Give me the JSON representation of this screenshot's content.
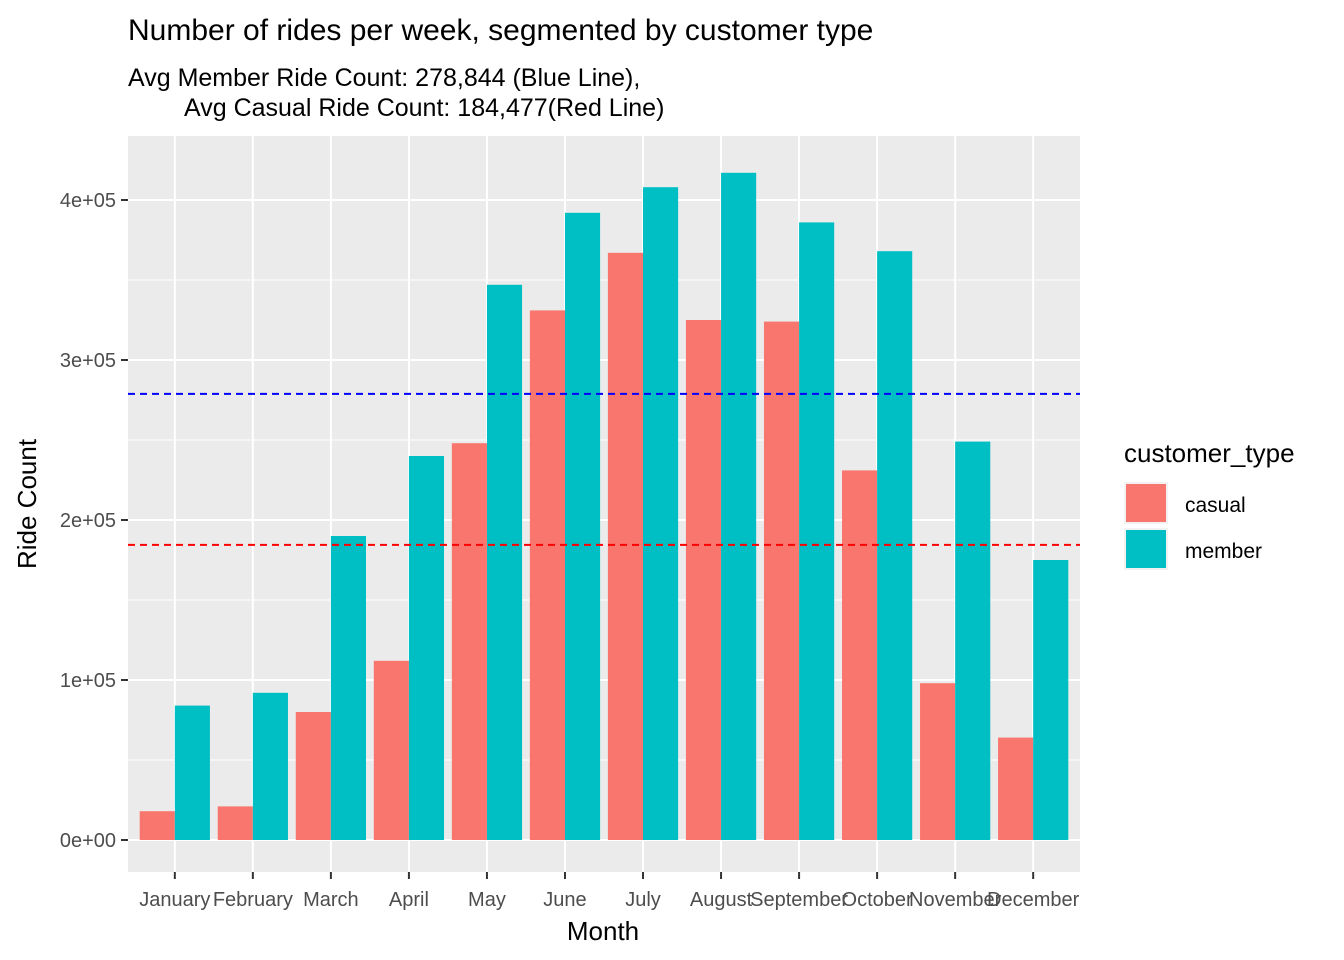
{
  "chart_data": {
    "type": "bar",
    "title": "Number of rides per week, segmented by customer type",
    "subtitle_lines": [
      "Avg Member Ride Count: 278,844 (Blue Line),",
      "Avg Casual Ride Count: 184,477(Red Line)"
    ],
    "xlabel": "Month",
    "ylabel": "Ride Count",
    "categories": [
      "January",
      "February",
      "March",
      "April",
      "May",
      "June",
      "July",
      "August",
      "September",
      "October",
      "November",
      "December"
    ],
    "series": [
      {
        "name": "casual",
        "color": "#F8766D",
        "values": [
          18000,
          21000,
          80000,
          112000,
          248000,
          331000,
          367000,
          325000,
          324000,
          231000,
          98000,
          64000
        ]
      },
      {
        "name": "member",
        "color": "#00BFC4",
        "values": [
          84000,
          92000,
          190000,
          240000,
          347000,
          392000,
          408000,
          417000,
          386000,
          368000,
          249000,
          175000
        ]
      }
    ],
    "yticks": [
      {
        "value": 0,
        "label": "0e+00"
      },
      {
        "value": 100000,
        "label": "1e+05"
      },
      {
        "value": 200000,
        "label": "2e+05"
      },
      {
        "value": 300000,
        "label": "3e+05"
      },
      {
        "value": 400000,
        "label": "4e+05"
      }
    ],
    "ylim": [
      -20000,
      440000
    ],
    "reference_lines": [
      {
        "value": 278844,
        "color": "#0000FF",
        "style": "dashed"
      },
      {
        "value": 184477,
        "color": "#FF0000",
        "style": "dashed"
      }
    ],
    "legend": {
      "title": "customer_type",
      "position": "right",
      "entries": [
        "casual",
        "member"
      ]
    },
    "grid": true,
    "panel_background": "#EBEBEB",
    "grid_color": "#FFFFFF"
  }
}
